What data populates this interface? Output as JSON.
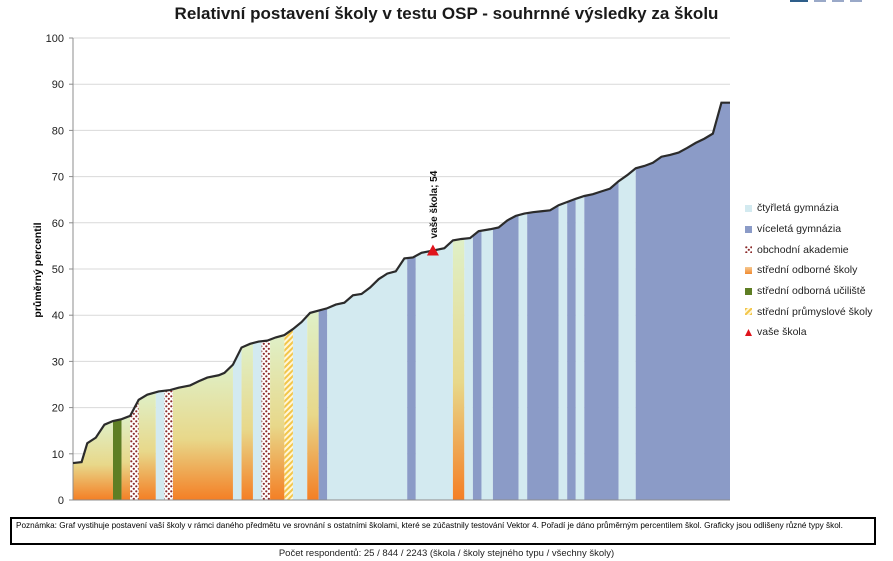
{
  "chart_data": {
    "type": "area",
    "title": "Relativní postavení školy v testu OSP - souhrnné výsledky za školu",
    "ylabel": "průměrný percentil",
    "xlabel": "",
    "ylim": [
      0,
      100
    ],
    "yticks": [
      0,
      10,
      20,
      30,
      40,
      50,
      60,
      70,
      80,
      90,
      100
    ],
    "grid": true,
    "legend_position": "right",
    "categories": [
      {
        "key": "ctyrleta",
        "name": "čtyřletá gymnázia",
        "color": "#d3eaf0"
      },
      {
        "key": "viceleta",
        "name": "víceletá gymnázia",
        "color": "#8b9bc7"
      },
      {
        "key": "obchodni",
        "name": "obchodní akademie",
        "color": "#8b2a2a"
      },
      {
        "key": "odborne",
        "name": "střední odborné školy",
        "color": "#f2a65a"
      },
      {
        "key": "ucNiste",
        "name": "střední odborná učiliště",
        "color": "#5e7e24"
      },
      {
        "key": "prumyslove",
        "name": "střední průmyslové školy",
        "color": "#f3c64a"
      }
    ],
    "points": [
      [
        0,
        8
      ],
      [
        1.5,
        8.2
      ],
      [
        2.5,
        12.3
      ],
      [
        4,
        13.5
      ],
      [
        5.5,
        16.3
      ],
      [
        7,
        17.1
      ],
      [
        8.5,
        17.5
      ],
      [
        10,
        18.2
      ],
      [
        11.5,
        21.7
      ],
      [
        13,
        22.8
      ],
      [
        15,
        23.5
      ],
      [
        17,
        23.8
      ],
      [
        18.5,
        24.3
      ],
      [
        20.5,
        24.8
      ],
      [
        22,
        25.7
      ],
      [
        23.5,
        26.5
      ],
      [
        25.5,
        27
      ],
      [
        26.5,
        27.5
      ],
      [
        28,
        29.3
      ],
      [
        29.5,
        33
      ],
      [
        31,
        33.8
      ],
      [
        32.5,
        34.3
      ],
      [
        34,
        34.5
      ],
      [
        35.5,
        35.2
      ],
      [
        37,
        35.7
      ],
      [
        38.5,
        37
      ],
      [
        40,
        38.5
      ],
      [
        41.5,
        40.5
      ],
      [
        43,
        41
      ],
      [
        44.5,
        41.5
      ],
      [
        46,
        42.3
      ],
      [
        47.5,
        42.7
      ],
      [
        49,
        44.3
      ],
      [
        50.5,
        44.6
      ],
      [
        52,
        46
      ],
      [
        53.5,
        47.8
      ],
      [
        55,
        49
      ],
      [
        56.5,
        49.5
      ],
      [
        58,
        52.3
      ],
      [
        59.5,
        52.5
      ],
      [
        61,
        53.5
      ],
      [
        63,
        54
      ],
      [
        65,
        54.5
      ],
      [
        66.5,
        56.2
      ],
      [
        68,
        56.5
      ],
      [
        69.5,
        56.7
      ],
      [
        71,
        58.2
      ],
      [
        73,
        58.6
      ],
      [
        74.5,
        59
      ],
      [
        76,
        60.5
      ],
      [
        77.5,
        61.5
      ],
      [
        79,
        62
      ],
      [
        80.5,
        62.3
      ],
      [
        82,
        62.5
      ],
      [
        83.5,
        62.7
      ],
      [
        85,
        63.8
      ],
      [
        86.5,
        64.5
      ],
      [
        88,
        65.2
      ],
      [
        89.5,
        65.8
      ],
      [
        91,
        66.2
      ],
      [
        92.5,
        66.8
      ],
      [
        94,
        67.4
      ],
      [
        95.5,
        69
      ],
      [
        97,
        70.3
      ],
      [
        98.5,
        71.8
      ],
      [
        100,
        72.3
      ],
      [
        101.5,
        73
      ],
      [
        103,
        74.3
      ],
      [
        104.5,
        74.7
      ],
      [
        106,
        75.2
      ],
      [
        107.5,
        76.2
      ],
      [
        109,
        77.3
      ],
      [
        110.5,
        78.2
      ],
      [
        112,
        79.3
      ],
      [
        113.5,
        86
      ],
      [
        115,
        86
      ]
    ],
    "bands": [
      {
        "from": 0,
        "to": 7,
        "type": "odborne"
      },
      {
        "from": 7,
        "to": 8.5,
        "type": "ucNiste"
      },
      {
        "from": 8.5,
        "to": 10,
        "type": "odborne"
      },
      {
        "from": 10,
        "to": 11.5,
        "type": "obchodni"
      },
      {
        "from": 11.5,
        "to": 14.5,
        "type": "odborne"
      },
      {
        "from": 14.5,
        "to": 16,
        "type": "ctyrleta"
      },
      {
        "from": 16,
        "to": 17.5,
        "type": "obchodni"
      },
      {
        "from": 17.5,
        "to": 28,
        "type": "odborne"
      },
      {
        "from": 28,
        "to": 29.5,
        "type": "ctyrleta"
      },
      {
        "from": 29.5,
        "to": 31.5,
        "type": "odborne"
      },
      {
        "from": 31.5,
        "to": 33,
        "type": "ctyrleta"
      },
      {
        "from": 33,
        "to": 34.5,
        "type": "obchodni"
      },
      {
        "from": 34.5,
        "to": 37,
        "type": "odborne"
      },
      {
        "from": 37,
        "to": 38.5,
        "type": "prumyslove"
      },
      {
        "from": 38.5,
        "to": 41,
        "type": "ctyrleta"
      },
      {
        "from": 41,
        "to": 43,
        "type": "odborne"
      },
      {
        "from": 43,
        "to": 44.5,
        "type": "viceleta"
      },
      {
        "from": 44.5,
        "to": 58.5,
        "type": "ctyrleta"
      },
      {
        "from": 58.5,
        "to": 60,
        "type": "viceleta"
      },
      {
        "from": 60,
        "to": 66.5,
        "type": "ctyrleta"
      },
      {
        "from": 66.5,
        "to": 68.5,
        "type": "odborne"
      },
      {
        "from": 68.5,
        "to": 70,
        "type": "ctyrleta"
      },
      {
        "from": 70,
        "to": 71.5,
        "type": "viceleta"
      },
      {
        "from": 71.5,
        "to": 73.5,
        "type": "ctyrleta"
      },
      {
        "from": 73.5,
        "to": 78,
        "type": "viceleta"
      },
      {
        "from": 78,
        "to": 79.5,
        "type": "ctyrleta"
      },
      {
        "from": 79.5,
        "to": 85,
        "type": "viceleta"
      },
      {
        "from": 85,
        "to": 86.5,
        "type": "ctyrleta"
      },
      {
        "from": 86.5,
        "to": 88,
        "type": "viceleta"
      },
      {
        "from": 88,
        "to": 89.5,
        "type": "ctyrleta"
      },
      {
        "from": 89.5,
        "to": 95.5,
        "type": "viceleta"
      },
      {
        "from": 95.5,
        "to": 98.5,
        "type": "ctyrleta"
      },
      {
        "from": 98.5,
        "to": 115,
        "type": "viceleta"
      }
    ],
    "marker": {
      "x": 63,
      "y": 54,
      "label": "vaše škola; 54",
      "legend": "vaše škola",
      "color": "#e0141c"
    }
  },
  "note": {
    "prefix": "Poznámka:",
    "text": "Graf vystihuje postavení vaší školy v rámci daného předmětu ve srovnání s ostatními školami, které se zúčastnily testování Vektor 4. Pořadí je dáno průměrným percentilem škol. Graficky jsou odlišeny různé typy škol."
  },
  "footer": "Počet respondentů: 25 / 844 / 2243 (škola / školy stejného typu / všechny školy)"
}
